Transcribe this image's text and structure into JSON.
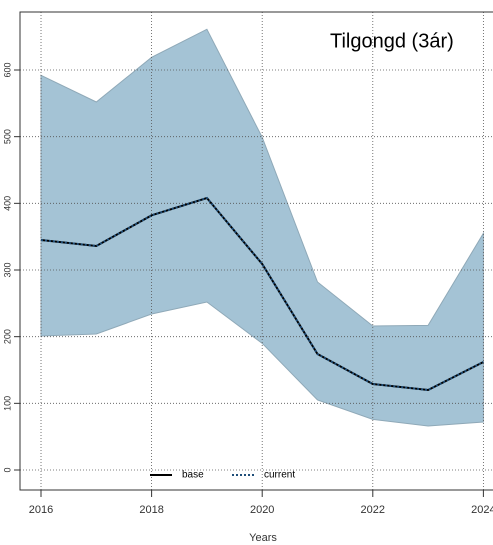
{
  "chart_data": {
    "type": "band-line",
    "title": "Tilgongd (3ár)",
    "x_label": "Years",
    "x": [
      2016,
      2017,
      2018,
      2019,
      2020,
      2021,
      2022,
      2023,
      2024
    ],
    "band": {
      "color": "#a4c3d5",
      "upper": [
        592,
        552,
        619,
        661,
        499,
        282,
        216,
        217,
        355
      ],
      "lower": [
        201,
        204,
        234,
        252,
        190,
        105,
        76,
        66,
        72
      ]
    },
    "series": [
      {
        "name": "base",
        "color": "#000000",
        "style": "solid",
        "values": [
          345,
          336,
          382,
          408,
          309,
          174,
          129,
          120,
          162
        ]
      },
      {
        "name": "current",
        "color": "#1f4e79",
        "style": "dotted",
        "values": [
          345,
          336,
          382,
          408,
          309,
          174,
          129,
          120,
          162
        ]
      }
    ],
    "xlim": [
      2015.62,
      2024.38
    ],
    "xticks": [
      2016,
      2018,
      2020,
      2022,
      2024
    ],
    "ylim": [
      -30,
      687
    ],
    "yticks": [
      0,
      100,
      200,
      300,
      400,
      500,
      600
    ],
    "grid": true,
    "legend": "bottom"
  }
}
